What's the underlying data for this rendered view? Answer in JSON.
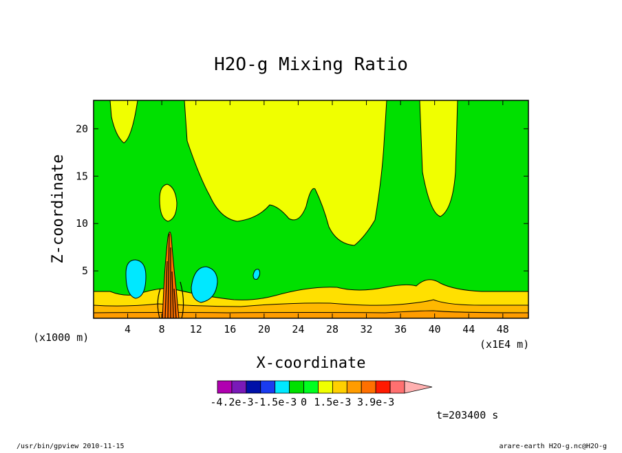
{
  "chart_data": {
    "type": "heatmap",
    "title": "H2O-g Mixing Ratio",
    "xlabel": "X-coordinate",
    "ylabel": "Z-coordinate",
    "x_unit_left": "(x1000 m)",
    "x_unit_right": "(x1E4 m)",
    "xlim": [
      0,
      51
    ],
    "ylim": [
      0,
      23
    ],
    "x_ticks": [
      {
        "value": 4,
        "label": "4"
      },
      {
        "value": 8,
        "label": "8"
      },
      {
        "value": 12,
        "label": "12"
      },
      {
        "value": 16,
        "label": "16"
      },
      {
        "value": 20,
        "label": "20"
      },
      {
        "value": 24,
        "label": "24"
      },
      {
        "value": 28,
        "label": "28"
      },
      {
        "value": 32,
        "label": "32"
      },
      {
        "value": 36,
        "label": "36"
      },
      {
        "value": 40,
        "label": "40"
      },
      {
        "value": 44,
        "label": "44"
      },
      {
        "value": 48,
        "label": "48"
      }
    ],
    "y_ticks": [
      {
        "value": 5,
        "label": "5"
      },
      {
        "value": 10,
        "label": "10"
      },
      {
        "value": 15,
        "label": "15"
      },
      {
        "value": 20,
        "label": "20"
      }
    ],
    "colorbar": {
      "colors": [
        "#b000b0",
        "#7a1ab8",
        "#0010a8",
        "#1a3cf0",
        "#00e8ff",
        "#00e000",
        "#00ff20",
        "#f0ff00",
        "#ffd000",
        "#ff9c00",
        "#ff7000",
        "#ff1a00",
        "#ff7070",
        "#ffb0b0"
      ],
      "labels": [
        {
          "after_bin": 0,
          "text": "-4.2e-3"
        },
        {
          "after_bin": 3,
          "text": "-1.5e-3"
        },
        {
          "after_bin": 5,
          "text": "0"
        },
        {
          "after_bin": 7,
          "text": "1.5e-3"
        },
        {
          "after_bin": 10,
          "text": "3.9e-3"
        }
      ]
    },
    "region_colors": {
      "background": "#00e000",
      "upper_yellow": "#f0ff00",
      "cyan": "#00e8ff",
      "band_yellow": "#ffe000",
      "band_orange": "#ffb800",
      "band_deep": "#ff9c00",
      "plume": "#ff7000"
    },
    "time_label": "t=203400 s"
  },
  "footer": {
    "left": "/usr/bin/gpview  2010-11-15",
    "right": "arare-earth_H2O-g.nc@H2O-g"
  }
}
